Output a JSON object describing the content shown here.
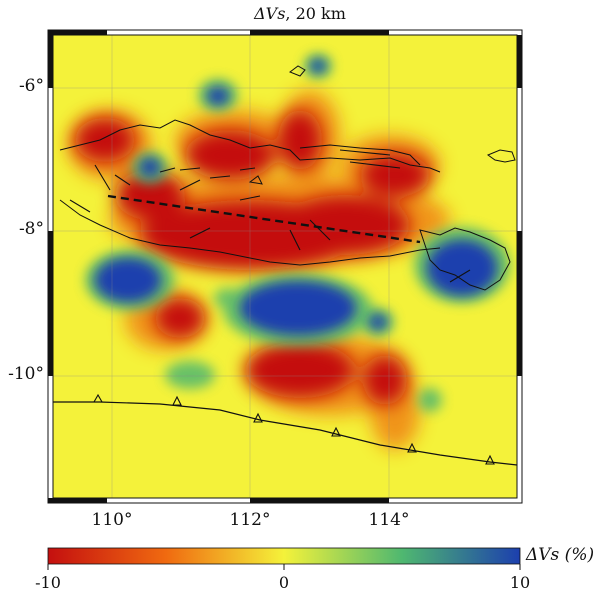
{
  "title": {
    "symbol": "ΔVs",
    "text": ", 20 km"
  },
  "map": {
    "projection": "lon-lat",
    "lon_range": [
      109.3,
      115.6
    ],
    "lat_range": [
      -11.8,
      -5.3
    ],
    "lon_ticks": [
      "110°",
      "112°",
      "114°"
    ],
    "lat_ticks": [
      "-6°",
      "-8°",
      "-10°"
    ],
    "background_color": "#f4f23a",
    "anomaly_colors": {
      "slow": "#c40f0f",
      "mid_slow": "#f06a10",
      "neutral": "#f4f23a",
      "mid_fast": "#4fb870",
      "fast": "#1c3fae"
    },
    "features": {
      "coastlines": "Java, Madura, Bali",
      "faults": "black line segments",
      "dashed_line": "approx. -7.5° to -8.1° across Java",
      "trench": "Java Trench, triangle markers"
    }
  },
  "colorbar": {
    "label": "ΔVs (%)",
    "min_label": "-10",
    "mid_label": "0",
    "max_label": "10",
    "min": -10,
    "max": 10,
    "colors": [
      "#c40f0f",
      "#f06a10",
      "#f4f23a",
      "#4fb870",
      "#1c3fae"
    ]
  }
}
